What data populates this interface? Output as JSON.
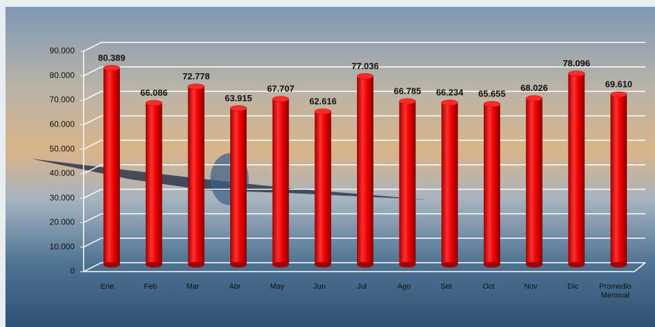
{
  "chart_data": {
    "type": "bar",
    "categories": [
      "Ene.",
      "Feb",
      "Mar",
      "Abr",
      "May",
      "Jun",
      "Jul",
      "Ago",
      "Set",
      "Oct",
      "Nov",
      "Dic",
      "Promedio Mensual"
    ],
    "values": [
      80389,
      66086,
      72778,
      63915,
      67707,
      62616,
      77036,
      66785,
      66234,
      65655,
      68026,
      78096,
      69610
    ],
    "value_labels": [
      "80.389",
      "66.086",
      "72.778",
      "63.915",
      "67.707",
      "62.616",
      "77.036",
      "66.785",
      "66.234",
      "65.655",
      "68.026",
      "78.096",
      "69.610"
    ],
    "color": "#ff0000",
    "ylim": [
      0,
      90000
    ],
    "yticks": [
      0,
      {
        "value": 10000,
        "label": "10.000"
      },
      {
        "value": 20000,
        "label": "20.000"
      },
      {
        "value": 30000,
        "label": "30.000"
      },
      {
        "value": 40000,
        "label": "40.000"
      },
      {
        "value": 50000,
        "label": "50.000"
      },
      {
        "value": 60000,
        "label": "60.000"
      },
      {
        "value": 70000,
        "label": "70.000"
      },
      {
        "value": 80000,
        "label": "80.000"
      },
      {
        "value": 90000,
        "label": "90.000"
      }
    ],
    "grid": true
  }
}
